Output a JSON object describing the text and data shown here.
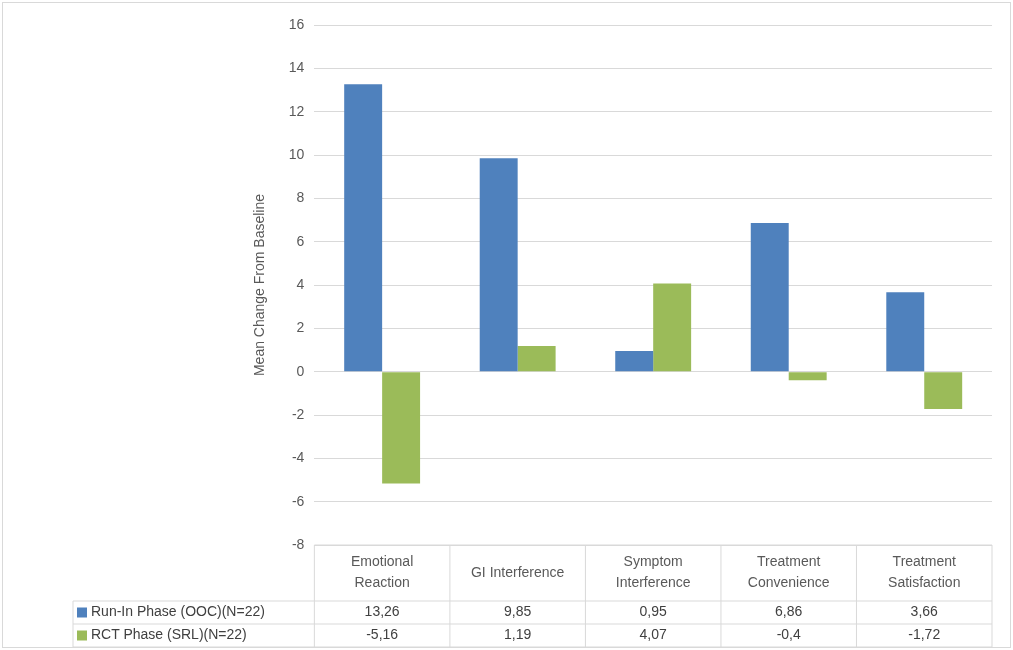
{
  "chart_data": {
    "type": "bar",
    "ylabel": "Mean Change From Baseline",
    "categories": [
      "Emotional Reaction",
      "GI Interference",
      "Symptom Interference",
      "Treatment Convenience",
      "Treatment Satisfaction"
    ],
    "series": [
      {
        "name": "Run-In Phase (OOC)(N=22)",
        "color": "#4f81bd",
        "values": [
          13.26,
          9.85,
          0.95,
          6.86,
          3.66
        ],
        "value_labels": [
          "13,26",
          "9,85",
          "0,95",
          "6,86",
          "3,66"
        ]
      },
      {
        "name": "RCT Phase (SRL)(N=22)",
        "color": "#9bbb59",
        "values": [
          -5.16,
          1.19,
          4.07,
          -0.4,
          -1.72
        ],
        "value_labels": [
          "-5,16",
          "1,19",
          "4,07",
          "-0,4",
          "-1,72"
        ]
      }
    ],
    "ylim": [
      -8,
      16
    ],
    "yticks": [
      -8,
      -6,
      -4,
      -2,
      0,
      2,
      4,
      6,
      8,
      10,
      12,
      14,
      16
    ],
    "grid": "y",
    "legend": "bottom"
  }
}
